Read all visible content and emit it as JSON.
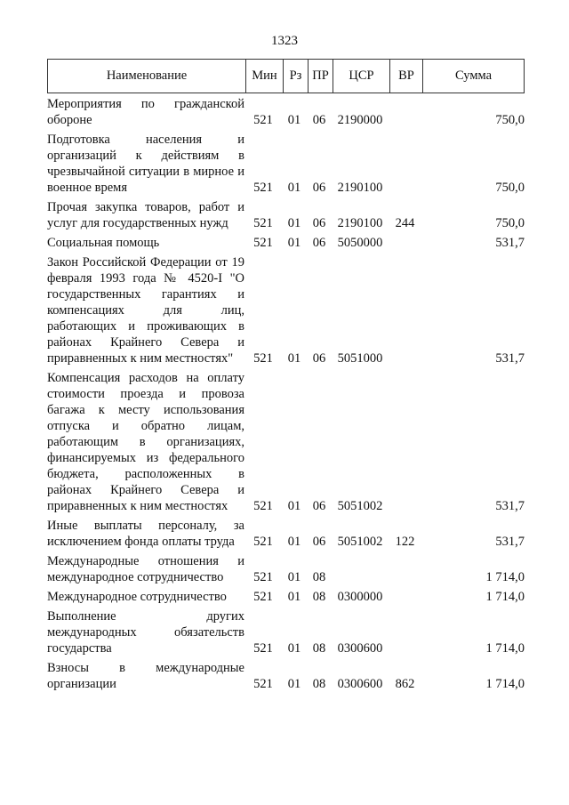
{
  "page_number": "1323",
  "columns": [
    "Наименование",
    "Мин",
    "Рз",
    "ПР",
    "ЦСР",
    "ВР",
    "Сумма"
  ],
  "rows": [
    {
      "name": "Мероприятия по гражданской обороне",
      "min": "521",
      "rz": "01",
      "pr": "06",
      "csr": "2190000",
      "vr": "",
      "sum": "750,0"
    },
    {
      "name": "Подготовка населения и организаций к действиям в чрезвычайной ситуации в мирное и военное время",
      "min": "521",
      "rz": "01",
      "pr": "06",
      "csr": "2190100",
      "vr": "",
      "sum": "750,0"
    },
    {
      "name": "Прочая закупка товаров, работ и услуг для государственных нужд",
      "min": "521",
      "rz": "01",
      "pr": "06",
      "csr": "2190100",
      "vr": "244",
      "sum": "750,0"
    },
    {
      "name": "Социальная помощь",
      "min": "521",
      "rz": "01",
      "pr": "06",
      "csr": "5050000",
      "vr": "",
      "sum": "531,7"
    },
    {
      "name": "Закон Российской Федерации от 19 февраля 1993 года № 4520-I \"О государственных гарантиях и компенсациях для лиц, работающих и проживающих в районах Крайнего Севера и приравненных к ним местностях\"",
      "min": "521",
      "rz": "01",
      "pr": "06",
      "csr": "5051000",
      "vr": "",
      "sum": "531,7"
    },
    {
      "name": "Компенсация расходов на оплату стоимости проезда и провоза багажа к месту использования отпуска и обратно лицам, работающим в организациях, финансируемых из федерального бюджета, расположенных в районах Крайнего Севера и приравненных к ним местностях",
      "min": "521",
      "rz": "01",
      "pr": "06",
      "csr": "5051002",
      "vr": "",
      "sum": "531,7"
    },
    {
      "name": "Иные выплаты персоналу, за исключением фонда оплаты труда",
      "min": "521",
      "rz": "01",
      "pr": "06",
      "csr": "5051002",
      "vr": "122",
      "sum": "531,7"
    },
    {
      "name": "Международные отношения и международное сотрудничество",
      "min": "521",
      "rz": "01",
      "pr": "08",
      "csr": "",
      "vr": "",
      "sum": "1 714,0"
    },
    {
      "name": "Международное сотрудничество",
      "min": "521",
      "rz": "01",
      "pr": "08",
      "csr": "0300000",
      "vr": "",
      "sum": "1 714,0"
    },
    {
      "name": "Выполнение других международных обязательств государства",
      "min": "521",
      "rz": "01",
      "pr": "08",
      "csr": "0300600",
      "vr": "",
      "sum": "1 714,0"
    },
    {
      "name": "Взносы в международные организации",
      "min": "521",
      "rz": "01",
      "pr": "08",
      "csr": "0300600",
      "vr": "862",
      "sum": "1 714,0"
    }
  ]
}
